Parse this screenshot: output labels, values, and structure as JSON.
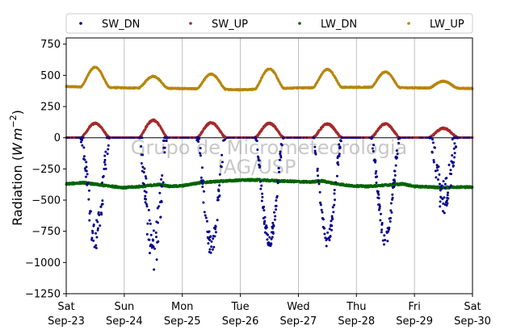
{
  "chart_data": {
    "type": "scatter",
    "ylabel": "Radiation (W m^-2)",
    "ylabel_parts": {
      "prefix": "Radiation (",
      "unit_w": "W",
      "unit_m": "m",
      "unit_exp": "−2",
      "suffix": ")"
    },
    "ylim": [
      -1250,
      800
    ],
    "yticks": [
      -1250,
      -1000,
      -750,
      -500,
      -250,
      0,
      250,
      500,
      750
    ],
    "ytick_labels": [
      "−1250",
      "−1000",
      "−750",
      "−500",
      "−250",
      "0",
      "250",
      "500",
      "750"
    ],
    "xlim_days": [
      0,
      7
    ],
    "xticks": [
      {
        "day": 0,
        "line1": "Sat",
        "line2": "Sep-23"
      },
      {
        "day": 1,
        "line1": "Sun",
        "line2": "Sep-24"
      },
      {
        "day": 2,
        "line1": "Mon",
        "line2": "Sep-25"
      },
      {
        "day": 3,
        "line1": "Tue",
        "line2": "Sep-26"
      },
      {
        "day": 4,
        "line1": "Wed",
        "line2": "Sep-27"
      },
      {
        "day": 5,
        "line1": "Thu",
        "line2": "Sep-28"
      },
      {
        "day": 6,
        "line1": "Fri",
        "line2": "Sep-29"
      },
      {
        "day": 7,
        "line1": "Sat",
        "line2": "Sep-30"
      }
    ],
    "grid": "vertical",
    "zero_line": true,
    "legend_position": "top",
    "watermark": [
      "Grupo de Micrometeorologia",
      "IAG/USP"
    ],
    "series": [
      {
        "name": "SW_DN",
        "color": "#00008b",
        "daily_peak": [
          -880,
          -1040,
          -930,
          -870,
          -860,
          -860,
          -600
        ],
        "daily_scatter": [
          120,
          180,
          90,
          60,
          60,
          60,
          150
        ]
      },
      {
        "name": "SW_UP",
        "color": "#a52a2a",
        "daily_peak": [
          115,
          140,
          120,
          115,
          110,
          110,
          75
        ]
      },
      {
        "name": "LW_DN",
        "color": "#006400",
        "points": [
          [
            0.0,
            -370
          ],
          [
            0.3,
            -360
          ],
          [
            0.6,
            -380
          ],
          [
            0.9,
            -395
          ],
          [
            1.0,
            -400
          ],
          [
            1.3,
            -390
          ],
          [
            1.6,
            -375
          ],
          [
            1.8,
            -390
          ],
          [
            2.0,
            -385
          ],
          [
            2.3,
            -360
          ],
          [
            2.6,
            -350
          ],
          [
            3.0,
            -340
          ],
          [
            3.3,
            -338
          ],
          [
            3.6,
            -345
          ],
          [
            3.9,
            -350
          ],
          [
            4.2,
            -355
          ],
          [
            4.4,
            -345
          ],
          [
            4.6,
            -365
          ],
          [
            4.9,
            -385
          ],
          [
            5.2,
            -390
          ],
          [
            5.5,
            -380
          ],
          [
            5.8,
            -370
          ],
          [
            6.0,
            -390
          ],
          [
            6.3,
            -395
          ],
          [
            6.5,
            -400
          ],
          [
            6.7,
            -395
          ],
          [
            7.0,
            -395
          ]
        ]
      },
      {
        "name": "LW_UP",
        "color": "#b8860b",
        "night_base": [
          410,
          400,
          395,
          385,
          400,
          405,
          400,
          395
        ],
        "daily_peak": [
          570,
          495,
          515,
          545,
          545,
          530,
          455
        ]
      }
    ]
  }
}
